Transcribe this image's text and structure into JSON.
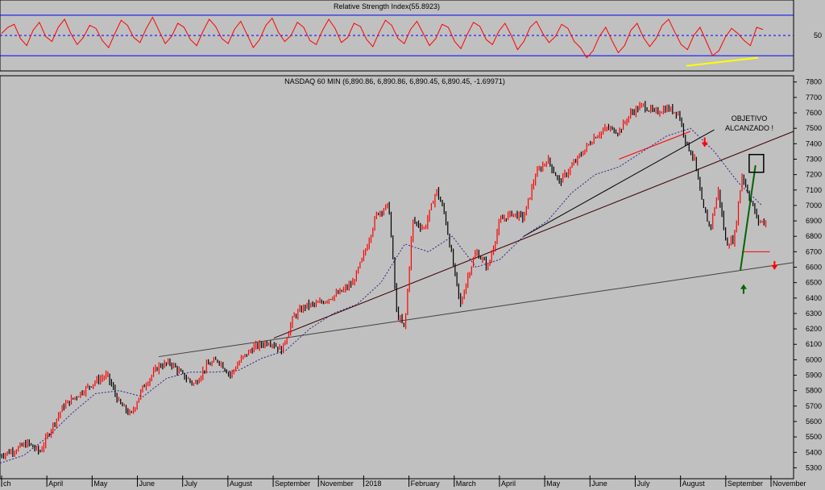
{
  "chart_data": [
    {
      "type": "line",
      "title": "Relative Strength Index(55.8923)",
      "yticks": [
        {
          "label": "50",
          "value": 50
        }
      ],
      "ylim": [
        15,
        85
      ],
      "reference_lines": [
        70,
        50,
        30
      ],
      "colors": {
        "series": "#ff0000",
        "band": "#0000ff",
        "trend": "#ffff00"
      },
      "series": [
        {
          "values": [
            52,
            58,
            61,
            47,
            40,
            55,
            63,
            49,
            44,
            58,
            66,
            52,
            41,
            48,
            60,
            57,
            45,
            38,
            52,
            65,
            60,
            48,
            43,
            57,
            68,
            55,
            42,
            49,
            62,
            58,
            46,
            40,
            54,
            66,
            59,
            47,
            42,
            56,
            64,
            51,
            38,
            46,
            60,
            67,
            53,
            44,
            50,
            63,
            58,
            45,
            41,
            55,
            66,
            57,
            43,
            48,
            62,
            59,
            46,
            39,
            53,
            65,
            60,
            47,
            42,
            56,
            64,
            52,
            40,
            47,
            61,
            58,
            44,
            37,
            51,
            63,
            59,
            46,
            41,
            54,
            62,
            50,
            36,
            44,
            58,
            64,
            52,
            43,
            49,
            61,
            57,
            44,
            38,
            28,
            35,
            49,
            58,
            45,
            33,
            40,
            55,
            62,
            48,
            39,
            47,
            60,
            66,
            53,
            41,
            36,
            50,
            58,
            44,
            30,
            35,
            48,
            57,
            52,
            45,
            40,
            58,
            55.9
          ]
        }
      ],
      "yellow_trendline": {
        "x": [
          0.865,
          0.94
        ],
        "y": [
          20,
          28
        ]
      }
    },
    {
      "type": "line",
      "title": "NASDAQ 60 MIN (6,890.86, 6,890.86, 6,890.45, 6,890.45, -1.69971)",
      "yticks": [
        7800,
        7700,
        7600,
        7500,
        7400,
        7300,
        7200,
        7100,
        7000,
        6900,
        6800,
        6700,
        6600,
        6500,
        6400,
        6300,
        6200,
        6100,
        6000,
        5900,
        5800,
        5700,
        5600,
        5500,
        5400,
        5300
      ],
      "ylim": [
        5250,
        7830
      ],
      "xticks": [
        "ch",
        "April",
        "May",
        "June",
        "July",
        "August",
        "September",
        "November",
        "2018",
        "February",
        "March",
        "April",
        "May",
        "June",
        "July",
        "August",
        "September",
        "November"
      ],
      "annotation": [
        "OBJETIVO",
        "ALCANZADO !"
      ],
      "colors": {
        "up": "#ff0000",
        "down": "#000000",
        "ma": "#3a1f8a",
        "trend": "#404040",
        "ema_break": "#ff0000",
        "green": "#006400"
      },
      "price": {
        "x": [
          0.0,
          0.02,
          0.035,
          0.05,
          0.065,
          0.08,
          0.1,
          0.12,
          0.135,
          0.15,
          0.165,
          0.18,
          0.2,
          0.215,
          0.23,
          0.245,
          0.26,
          0.275,
          0.29,
          0.305,
          0.32,
          0.34,
          0.355,
          0.37,
          0.385,
          0.4,
          0.415,
          0.43,
          0.445,
          0.46,
          0.475,
          0.49,
          0.5,
          0.51,
          0.52,
          0.535,
          0.55,
          0.56,
          0.57,
          0.58,
          0.59,
          0.6,
          0.615,
          0.63,
          0.645,
          0.66,
          0.675,
          0.69,
          0.705,
          0.72,
          0.735,
          0.75,
          0.765,
          0.78,
          0.795,
          0.81,
          0.825,
          0.84,
          0.855,
          0.865,
          0.875,
          0.885,
          0.895,
          0.905,
          0.915,
          0.925,
          0.935,
          0.945,
          0.955,
          0.965
        ],
        "y": [
          5380,
          5420,
          5460,
          5400,
          5560,
          5700,
          5780,
          5860,
          5900,
          5720,
          5640,
          5820,
          5960,
          5980,
          5900,
          5840,
          5960,
          6000,
          5900,
          6010,
          6080,
          6120,
          6060,
          6280,
          6350,
          6360,
          6400,
          6440,
          6500,
          6700,
          6950,
          7000,
          6300,
          6200,
          6900,
          6850,
          7100,
          6950,
          6650,
          6350,
          6550,
          6700,
          6600,
          6900,
          6950,
          6920,
          7200,
          7300,
          7150,
          7250,
          7350,
          7450,
          7500,
          7480,
          7600,
          7650,
          7600,
          7630,
          7600,
          7400,
          7300,
          7000,
          6850,
          7100,
          6750,
          6780,
          7200,
          7050,
          6900,
          6890
        ]
      },
      "ma": {
        "x": [
          0.0,
          0.03,
          0.06,
          0.09,
          0.12,
          0.15,
          0.18,
          0.21,
          0.24,
          0.27,
          0.3,
          0.33,
          0.36,
          0.39,
          0.42,
          0.45,
          0.48,
          0.51,
          0.54,
          0.57,
          0.6,
          0.63,
          0.66,
          0.69,
          0.72,
          0.75,
          0.78,
          0.81,
          0.84,
          0.87,
          0.9,
          0.93,
          0.96
        ],
        "y": [
          5330,
          5380,
          5500,
          5650,
          5780,
          5800,
          5760,
          5880,
          5920,
          5920,
          5930,
          6010,
          6060,
          6200,
          6300,
          6360,
          6500,
          6750,
          6700,
          6800,
          6600,
          6650,
          6800,
          6900,
          7080,
          7200,
          7250,
          7350,
          7450,
          7500,
          7350,
          7150,
          7000
        ]
      },
      "trendlines": [
        {
          "name": "long",
          "from": {
            "x": 0.2,
            "y": 6020
          },
          "to": {
            "x": 1.0,
            "y": 6630
          },
          "color": "#404040"
        },
        {
          "name": "mid",
          "from": {
            "x": 0.345,
            "y": 6140
          },
          "to": {
            "x": 1.0,
            "y": 7480
          },
          "color": "#400000"
        },
        {
          "name": "short",
          "from": {
            "x": 0.66,
            "y": 6800
          },
          "to": {
            "x": 0.9,
            "y": 7490
          },
          "color": "#000000"
        },
        {
          "name": "red-break",
          "from": {
            "x": 0.78,
            "y": 7300
          },
          "to": {
            "x": 0.87,
            "y": 7480
          },
          "color": "#ff0000"
        },
        {
          "name": "support",
          "from": {
            "x": 0.935,
            "y": 6700
          },
          "to": {
            "x": 0.97,
            "y": 6700
          },
          "color": "#ff0000"
        }
      ]
    }
  ]
}
